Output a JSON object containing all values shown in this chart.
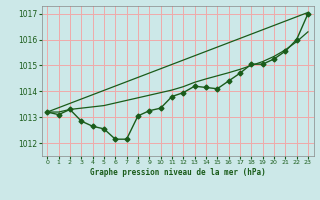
{
  "title": "Graphe pression niveau de la mer (hPa)",
  "bg_color": "#cce8e8",
  "grid_color": "#f0aaaa",
  "line_color": "#1a5c1a",
  "xlim": [
    -0.5,
    23.5
  ],
  "ylim": [
    1011.5,
    1017.3
  ],
  "yticks": [
    1012,
    1013,
    1014,
    1015,
    1016,
    1017
  ],
  "xticks": [
    0,
    1,
    2,
    3,
    4,
    5,
    6,
    7,
    8,
    9,
    10,
    11,
    12,
    13,
    14,
    15,
    16,
    17,
    18,
    19,
    20,
    21,
    22,
    23
  ],
  "series1": {
    "x": [
      0,
      1,
      2,
      3,
      4,
      5,
      6,
      7,
      8,
      9,
      10,
      11,
      12,
      13,
      14,
      15,
      16,
      17,
      18,
      19,
      20,
      21,
      22,
      23
    ],
    "y": [
      1013.2,
      1013.1,
      1013.3,
      1012.85,
      1012.65,
      1012.55,
      1012.15,
      1012.15,
      1013.05,
      1013.25,
      1013.35,
      1013.8,
      1013.95,
      1014.2,
      1014.15,
      1014.1,
      1014.4,
      1014.7,
      1015.05,
      1015.05,
      1015.25,
      1015.55,
      1016.0,
      1017.0
    ],
    "marker": "D",
    "markersize": 2.5,
    "linewidth": 1.0
  },
  "series2": {
    "x": [
      0,
      1,
      2,
      3,
      4,
      5,
      6,
      7,
      8,
      9,
      10,
      11,
      12,
      13,
      14,
      15,
      16,
      17,
      18,
      19,
      20,
      21,
      22,
      23
    ],
    "y": [
      1013.2,
      1013.2,
      1013.3,
      1013.35,
      1013.4,
      1013.45,
      1013.55,
      1013.65,
      1013.75,
      1013.85,
      1013.95,
      1014.05,
      1014.18,
      1014.35,
      1014.48,
      1014.6,
      1014.72,
      1014.85,
      1015.0,
      1015.15,
      1015.35,
      1015.6,
      1015.92,
      1016.3
    ],
    "marker": null,
    "linewidth": 0.9
  },
  "series3": {
    "x": [
      0,
      23
    ],
    "y": [
      1013.2,
      1017.05
    ],
    "marker": null,
    "linewidth": 0.9
  }
}
